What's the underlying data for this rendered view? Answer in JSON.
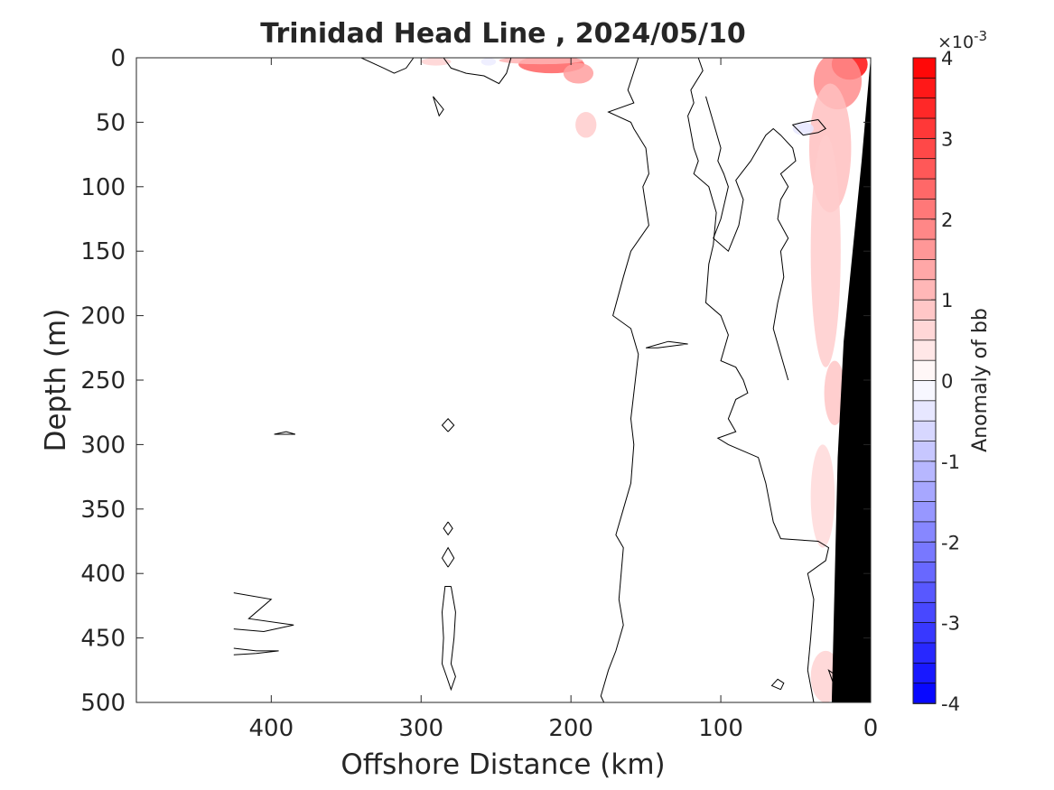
{
  "chart_data": {
    "type": "heatmap",
    "title": "Trinidad Head Line , 2024/05/10",
    "xlabel": "Offshore Distance (km)",
    "ylabel": "Depth (m)",
    "xlim": [
      490,
      0
    ],
    "ylim": [
      0,
      500
    ],
    "x_reversed": true,
    "y_reversed": true,
    "x_ticks": [
      400,
      300,
      200,
      100,
      0
    ],
    "y_ticks": [
      0,
      50,
      100,
      150,
      200,
      250,
      300,
      350,
      400,
      450,
      500
    ],
    "grid": false,
    "colorbar": {
      "label": "Anomaly of bb",
      "exponent_label": "×10",
      "exponent_power": "-3",
      "range": [
        -0.004,
        0.004
      ],
      "ticks": [
        4,
        3,
        2,
        1,
        0,
        -1,
        -2,
        -3,
        -4
      ],
      "levels": 32,
      "color_min": "#0000ff",
      "color_mid": "#ffffff",
      "color_max": "#ff0000"
    },
    "positive_anomaly_patches": [
      {
        "x": 213,
        "y": 5,
        "rx": 22,
        "ry": 7,
        "value": 0.0025
      },
      {
        "x": 195,
        "y": 12,
        "rx": 10,
        "ry": 8,
        "value": 0.0015
      },
      {
        "x": 290,
        "y": 3,
        "rx": 10,
        "ry": 3,
        "value": 0.0007
      },
      {
        "x": 220,
        "y": 2,
        "rx": 28,
        "ry": 3,
        "value": 0.0012
      },
      {
        "x": 190,
        "y": 52,
        "rx": 7,
        "ry": 10,
        "value": 0.0008
      },
      {
        "x": 14,
        "y": 5,
        "rx": 12,
        "ry": 12,
        "value": 0.0038
      },
      {
        "x": 22,
        "y": 18,
        "rx": 16,
        "ry": 22,
        "value": 0.0018
      },
      {
        "x": 27,
        "y": 70,
        "rx": 14,
        "ry": 50,
        "value": 0.001
      },
      {
        "x": 30,
        "y": 150,
        "rx": 10,
        "ry": 90,
        "value": 0.0008
      },
      {
        "x": 24,
        "y": 260,
        "rx": 7,
        "ry": 25,
        "value": 0.0009
      },
      {
        "x": 32,
        "y": 340,
        "rx": 8,
        "ry": 40,
        "value": 0.0006
      },
      {
        "x": 30,
        "y": 480,
        "rx": 10,
        "ry": 20,
        "value": 0.0007
      }
    ],
    "negative_anomaly_patches": [
      {
        "x": 45,
        "y": 55,
        "rx": 7,
        "ry": 5,
        "value": -0.0004
      },
      {
        "x": 255,
        "y": 3,
        "rx": 5,
        "ry": 3,
        "value": -0.0003
      }
    ],
    "bathymetry": {
      "color": "#000000",
      "points": [
        [
          0,
          0
        ],
        [
          0,
          500
        ],
        [
          26,
          500
        ],
        [
          22,
          310
        ],
        [
          18,
          220
        ],
        [
          6,
          80
        ],
        [
          0,
          0
        ]
      ]
    },
    "zero_contours": [
      [
        [
          340,
          0
        ],
        [
          325,
          8
        ],
        [
          318,
          12
        ],
        [
          310,
          8
        ],
        [
          305,
          0
        ]
      ],
      [
        [
          285,
          0
        ],
        [
          280,
          8
        ],
        [
          270,
          12
        ],
        [
          258,
          14
        ],
        [
          248,
          20
        ],
        [
          243,
          12
        ],
        [
          240,
          0
        ]
      ],
      [
        [
          155,
          0
        ],
        [
          162,
          25
        ],
        [
          158,
          35
        ],
        [
          175,
          42
        ],
        [
          160,
          50
        ],
        [
          158,
          55
        ],
        [
          150,
          70
        ],
        [
          148,
          90
        ],
        [
          152,
          100
        ],
        [
          148,
          130
        ],
        [
          160,
          150
        ],
        [
          165,
          170
        ],
        [
          172,
          200
        ],
        [
          160,
          210
        ],
        [
          155,
          230
        ],
        [
          158,
          260
        ],
        [
          160,
          280
        ],
        [
          158,
          300
        ],
        [
          160,
          330
        ],
        [
          165,
          350
        ],
        [
          170,
          370
        ],
        [
          165,
          380
        ],
        [
          168,
          420
        ],
        [
          165,
          440
        ],
        [
          170,
          460
        ],
        [
          175,
          475
        ],
        [
          180,
          495
        ],
        [
          178,
          500
        ]
      ],
      [
        [
          115,
          0
        ],
        [
          112,
          10
        ],
        [
          120,
          25
        ],
        [
          118,
          35
        ],
        [
          122,
          45
        ],
        [
          118,
          70
        ],
        [
          115,
          80
        ],
        [
          118,
          90
        ],
        [
          108,
          100
        ],
        [
          103,
          120
        ],
        [
          105,
          145
        ],
        [
          108,
          160
        ],
        [
          110,
          190
        ],
        [
          100,
          200
        ],
        [
          95,
          215
        ],
        [
          100,
          235
        ],
        [
          90,
          240
        ],
        [
          85,
          250
        ],
        [
          82,
          260
        ],
        [
          90,
          265
        ],
        [
          95,
          280
        ],
        [
          90,
          290
        ],
        [
          102,
          295
        ],
        [
          95,
          300
        ],
        [
          75,
          310
        ],
        [
          70,
          330
        ],
        [
          65,
          360
        ],
        [
          60,
          373
        ],
        [
          35,
          375
        ],
        [
          28,
          380
        ],
        [
          30,
          390
        ],
        [
          42,
          400
        ],
        [
          38,
          420
        ],
        [
          40,
          450
        ],
        [
          42,
          475
        ],
        [
          38,
          500
        ]
      ],
      [
        [
          110,
          30
        ],
        [
          105,
          50
        ],
        [
          100,
          70
        ],
        [
          102,
          80
        ],
        [
          98,
          90
        ],
        [
          95,
          100
        ],
        [
          100,
          125
        ],
        [
          105,
          140
        ],
        [
          95,
          150
        ],
        [
          88,
          130
        ],
        [
          85,
          110
        ],
        [
          90,
          95
        ],
        [
          80,
          80
        ],
        [
          70,
          60
        ],
        [
          65,
          55
        ],
        [
          60,
          60
        ],
        [
          52,
          70
        ],
        [
          50,
          80
        ],
        [
          60,
          90
        ],
        [
          55,
          100
        ],
        [
          60,
          110
        ],
        [
          62,
          125
        ],
        [
          55,
          140
        ],
        [
          60,
          150
        ],
        [
          58,
          170
        ],
        [
          62,
          190
        ],
        [
          65,
          210
        ],
        [
          60,
          230
        ],
        [
          55,
          250
        ]
      ],
      [
        [
          292,
          30
        ],
        [
          285,
          40
        ],
        [
          288,
          45
        ],
        [
          292,
          30
        ]
      ],
      [
        [
          142,
          225
        ],
        [
          122,
          222
        ],
        [
          135,
          220
        ],
        [
          150,
          225
        ],
        [
          142,
          225
        ]
      ],
      [
        [
          282,
          290
        ],
        [
          278,
          285
        ],
        [
          282,
          280
        ],
        [
          286,
          285
        ],
        [
          282,
          290
        ]
      ],
      [
        [
          398,
          292
        ],
        [
          390,
          290
        ],
        [
          384,
          292
        ],
        [
          390,
          292
        ],
        [
          398,
          292
        ]
      ],
      [
        [
          282,
          360
        ],
        [
          279,
          365
        ],
        [
          282,
          370
        ],
        [
          285,
          365
        ],
        [
          282,
          360
        ]
      ],
      [
        [
          282,
          395
        ],
        [
          278,
          388
        ],
        [
          282,
          380
        ],
        [
          286,
          388
        ],
        [
          282,
          395
        ]
      ],
      [
        [
          425,
          415
        ],
        [
          400,
          420
        ],
        [
          415,
          435
        ],
        [
          385,
          440
        ],
        [
          405,
          445
        ],
        [
          425,
          443
        ]
      ],
      [
        [
          425,
          458
        ],
        [
          410,
          460
        ],
        [
          395,
          460
        ],
        [
          410,
          462
        ],
        [
          425,
          463
        ]
      ],
      [
        [
          280,
          410
        ],
        [
          277,
          430
        ],
        [
          278,
          450
        ],
        [
          280,
          470
        ],
        [
          277,
          480
        ],
        [
          280,
          490
        ],
        [
          283,
          480
        ],
        [
          286,
          470
        ],
        [
          285,
          450
        ],
        [
          286,
          430
        ],
        [
          284,
          410
        ],
        [
          280,
          410
        ]
      ],
      [
        [
          60,
          490
        ],
        [
          58,
          485
        ],
        [
          62,
          482
        ],
        [
          66,
          487
        ],
        [
          60,
          490
        ]
      ],
      [
        [
          35,
          48
        ],
        [
          45,
          50
        ],
        [
          52,
          52
        ],
        [
          45,
          60
        ],
        [
          35,
          58
        ],
        [
          30,
          55
        ],
        [
          35,
          48
        ]
      ],
      [
        [
          20,
          495
        ],
        [
          22,
          480
        ],
        [
          28,
          475
        ],
        [
          25,
          485
        ],
        [
          20,
          495
        ]
      ]
    ]
  }
}
